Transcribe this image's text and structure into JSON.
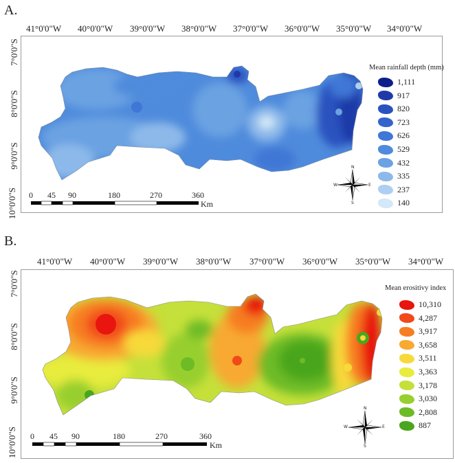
{
  "panels": [
    {
      "label": "A.",
      "x_ticks": [
        "41°0'0\"W",
        "40°0'0\"W",
        "39°0'0\"W",
        "38°0'0\"W",
        "37°0'0\"W",
        "36°0'0\"W",
        "35°0'0\"W",
        "34°0'0\"W"
      ],
      "y_ticks": [
        "7°0'0\"S",
        "8°0'0\"S",
        "9°0'0\"S",
        "10°0'0\"S"
      ],
      "legend": {
        "title": "Mean rainfall depth (mm)",
        "entries": [
          {
            "value": "1,111",
            "color": "#0d1f8c"
          },
          {
            "value": "917",
            "color": "#1f3aa8"
          },
          {
            "value": "820",
            "color": "#2a52c0"
          },
          {
            "value": "723",
            "color": "#3464cc"
          },
          {
            "value": "626",
            "color": "#3f77d6"
          },
          {
            "value": "529",
            "color": "#4f8bdc"
          },
          {
            "value": "432",
            "color": "#6ba2e2"
          },
          {
            "value": "335",
            "color": "#8db9ea"
          },
          {
            "value": "237",
            "color": "#aecff1"
          },
          {
            "value": "140",
            "color": "#d3e8f8"
          }
        ]
      },
      "scale_labels": [
        "0",
        "45",
        "90",
        "180",
        "270",
        "360"
      ],
      "scale_unit": "Km",
      "compass": {
        "n": "N",
        "s": "S",
        "e": "E",
        "w": "W"
      }
    },
    {
      "label": "B.",
      "x_ticks": [
        "41°0'0\"W",
        "40°0'0\"W",
        "39°0'0\"W",
        "38°0'0\"W",
        "37°0'0\"W",
        "36°0'0\"W",
        "35°0'0\"W",
        "34°0'0\"W"
      ],
      "y_ticks": [
        "7°0'0\"S",
        "8°0'0\"S",
        "9°0'0\"S",
        "10°0'0\"S"
      ],
      "legend": {
        "title": "Mean erositivy index",
        "entries": [
          {
            "value": "10,310",
            "color": "#e8160e"
          },
          {
            "value": "4,287",
            "color": "#f1491a"
          },
          {
            "value": "3,917",
            "color": "#f77d22"
          },
          {
            "value": "3,658",
            "color": "#f8a930"
          },
          {
            "value": "3,511",
            "color": "#f7d93a"
          },
          {
            "value": "3,363",
            "color": "#e8ec3c"
          },
          {
            "value": "3,178",
            "color": "#c5e03a"
          },
          {
            "value": "3,030",
            "color": "#97cf2e"
          },
          {
            "value": "2,808",
            "color": "#6dbb25"
          },
          {
            "value": "887",
            "color": "#4aa61e"
          }
        ]
      },
      "scale_labels": [
        "0",
        "45",
        "90",
        "180",
        "270",
        "360"
      ],
      "scale_unit": "Km",
      "compass": {
        "n": "N",
        "s": "S",
        "e": "E",
        "w": "W"
      }
    }
  ]
}
